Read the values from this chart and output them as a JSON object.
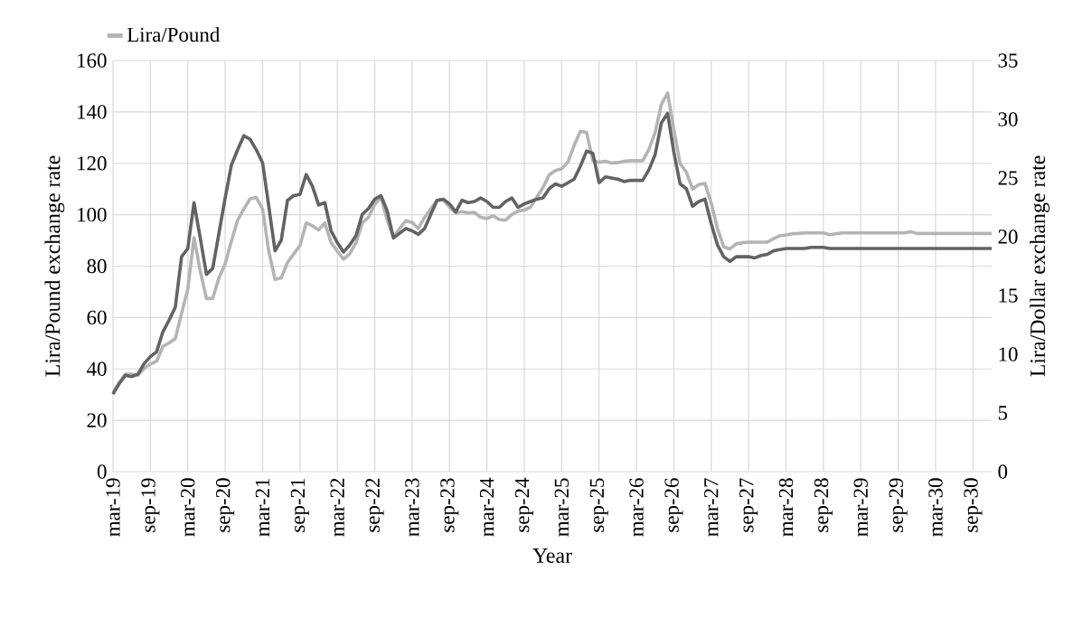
{
  "chart_data": {
    "type": "line",
    "xlabel": "Year",
    "ylabel": "Lira/Pound exchange rate",
    "y2label": "Lira/Dollar exchange rate",
    "categories": [
      "mar-19",
      null,
      null,
      null,
      null,
      null,
      "sep-19",
      null,
      null,
      null,
      null,
      null,
      "mar-20",
      null,
      null,
      null,
      null,
      null,
      "sep-20",
      null,
      null,
      null,
      null,
      null,
      "mar-21",
      null,
      null,
      null,
      null,
      null,
      "sep-21",
      null,
      null,
      null,
      null,
      null,
      "mar-22",
      null,
      null,
      null,
      null,
      null,
      "sep-22",
      null,
      null,
      null,
      null,
      null,
      "mar-23",
      null,
      null,
      null,
      null,
      null,
      "sep-23",
      null,
      null,
      null,
      null,
      null,
      "mar-24",
      null,
      null,
      null,
      null,
      null,
      "sep-24",
      null,
      null,
      null,
      null,
      null,
      "mar-25",
      null,
      null,
      null,
      null,
      null,
      "sep-25",
      null,
      null,
      null,
      null,
      null,
      "mar-26",
      null,
      null,
      null,
      null,
      null,
      "sep-26",
      null,
      null,
      null,
      null,
      null,
      "mar-27",
      null,
      null,
      null,
      null,
      null,
      "sep-27",
      null,
      null,
      null,
      null,
      null,
      "mar-28",
      null,
      null,
      null,
      null,
      null,
      "sep-28",
      null,
      null,
      null,
      null,
      null,
      "mar-29",
      null,
      null,
      null,
      null,
      null,
      "sep-29",
      null,
      null,
      null,
      null,
      null,
      "mar-30",
      null,
      null,
      null,
      null,
      null,
      "sep-30",
      null,
      null,
      null
    ],
    "series": [
      {
        "name": "Lira/Pound",
        "color": "#b4b4b4",
        "values": [
          30.9,
          34.7,
          38,
          38,
          37.5,
          40.2,
          41.9,
          43,
          48.7,
          50.1,
          51.8,
          61.6,
          71,
          91.1,
          78.1,
          67.4,
          67.4,
          75.4,
          80.9,
          89.7,
          97.9,
          102.3,
          106.2,
          106.7,
          102.3,
          85.8,
          74.8,
          75.4,
          81.4,
          84.7,
          88,
          96.8,
          95.7,
          94.1,
          96.8,
          89.1,
          85.8,
          82.7,
          84.9,
          89.1,
          96.8,
          99,
          104,
          106.7,
          97.9,
          91.3,
          94.6,
          97.7,
          97,
          94.6,
          99,
          102.3,
          105.6,
          105.8,
          102.9,
          100.7,
          101.2,
          100.7,
          100.9,
          99,
          98.5,
          99.6,
          98.1,
          97.9,
          100.1,
          101.4,
          101.8,
          102.9,
          106.7,
          110.6,
          115.5,
          117.2,
          117.9,
          120.4,
          127,
          132.5,
          132,
          121,
          120.4,
          120.8,
          120.1,
          120.3,
          120.8,
          121,
          121,
          121,
          125.4,
          132,
          143,
          147.4,
          133.1,
          119.9,
          116.6,
          110,
          111.7,
          112.2,
          104.5,
          94.6,
          87.5,
          86.7,
          88.6,
          89.1,
          89.3,
          89.3,
          89.3,
          89.3,
          90.7,
          91.8,
          92.1,
          92.6,
          92.7,
          92.9,
          92.9,
          92.9,
          92.9,
          92.2,
          92.6,
          92.9,
          92.9,
          92.9,
          92.9,
          92.9,
          92.9,
          92.9,
          92.9,
          92.9,
          92.9,
          92.9,
          93.4,
          92.7,
          92.7,
          92.7,
          92.7,
          92.7,
          92.7,
          92.7,
          92.7,
          92.7,
          92.7,
          92.7,
          92.7,
          92.7
        ]
      },
      {
        "color": "#636363",
        "axis": "y2",
        "values": [
          6.6,
          7.5,
          8.2,
          8.1,
          8.3,
          9.2,
          9.8,
          10.2,
          11.9,
          12.9,
          14.0,
          18.3,
          19.0,
          22.9,
          19.9,
          16.8,
          17.3,
          20.3,
          23.3,
          26.1,
          27.4,
          28.6,
          28.3,
          27.4,
          26.3,
          22.6,
          18.8,
          19.7,
          23.1,
          23.5,
          23.6,
          25.3,
          24.3,
          22.7,
          22.9,
          20.5,
          19.5,
          18.7,
          19.3,
          20.1,
          21.9,
          22.4,
          23.2,
          23.5,
          22.2,
          19.9,
          20.3,
          20.7,
          20.5,
          20.2,
          20.7,
          21.9,
          23.1,
          23.2,
          22.8,
          22.1,
          23.1,
          22.9,
          23.0,
          23.3,
          23.0,
          22.5,
          22.5,
          23.0,
          23.3,
          22.5,
          22.8,
          23.0,
          23.2,
          23.3,
          24.1,
          24.5,
          24.3,
          24.6,
          24.9,
          26.0,
          27.3,
          27.1,
          24.6,
          25.1,
          25.0,
          24.9,
          24.7,
          24.8,
          24.8,
          24.8,
          25.7,
          27.0,
          29.7,
          30.5,
          27.2,
          24.5,
          24.1,
          22.6,
          23.0,
          23.2,
          21.1,
          19.3,
          18.3,
          17.9,
          18.3,
          18.3,
          18.3,
          18.2,
          18.4,
          18.5,
          18.8,
          18.9,
          19.0,
          19.0,
          19.0,
          19.0,
          19.1,
          19.1,
          19.1,
          19.0,
          19.0,
          19.0,
          19.0,
          19.0,
          19.0,
          19.0,
          19.0,
          19.0,
          19.0,
          19.0,
          19.0,
          19.0,
          19.0,
          19.0,
          19.0,
          19.0,
          19.0,
          19.0,
          19.0,
          19.0,
          19.0,
          19.0,
          19.0,
          19.0,
          19.0,
          19.0
        ]
      }
    ],
    "ylim": [
      0,
      160
    ],
    "yticks": [
      0,
      20,
      40,
      60,
      80,
      100,
      120,
      140,
      160
    ],
    "y2lim": [
      0,
      35
    ],
    "y2ticks": [
      0,
      5,
      10,
      15,
      20,
      25,
      30,
      35
    ],
    "grid": true,
    "legend": "top left",
    "marker": "none",
    "line_style": "solid"
  }
}
